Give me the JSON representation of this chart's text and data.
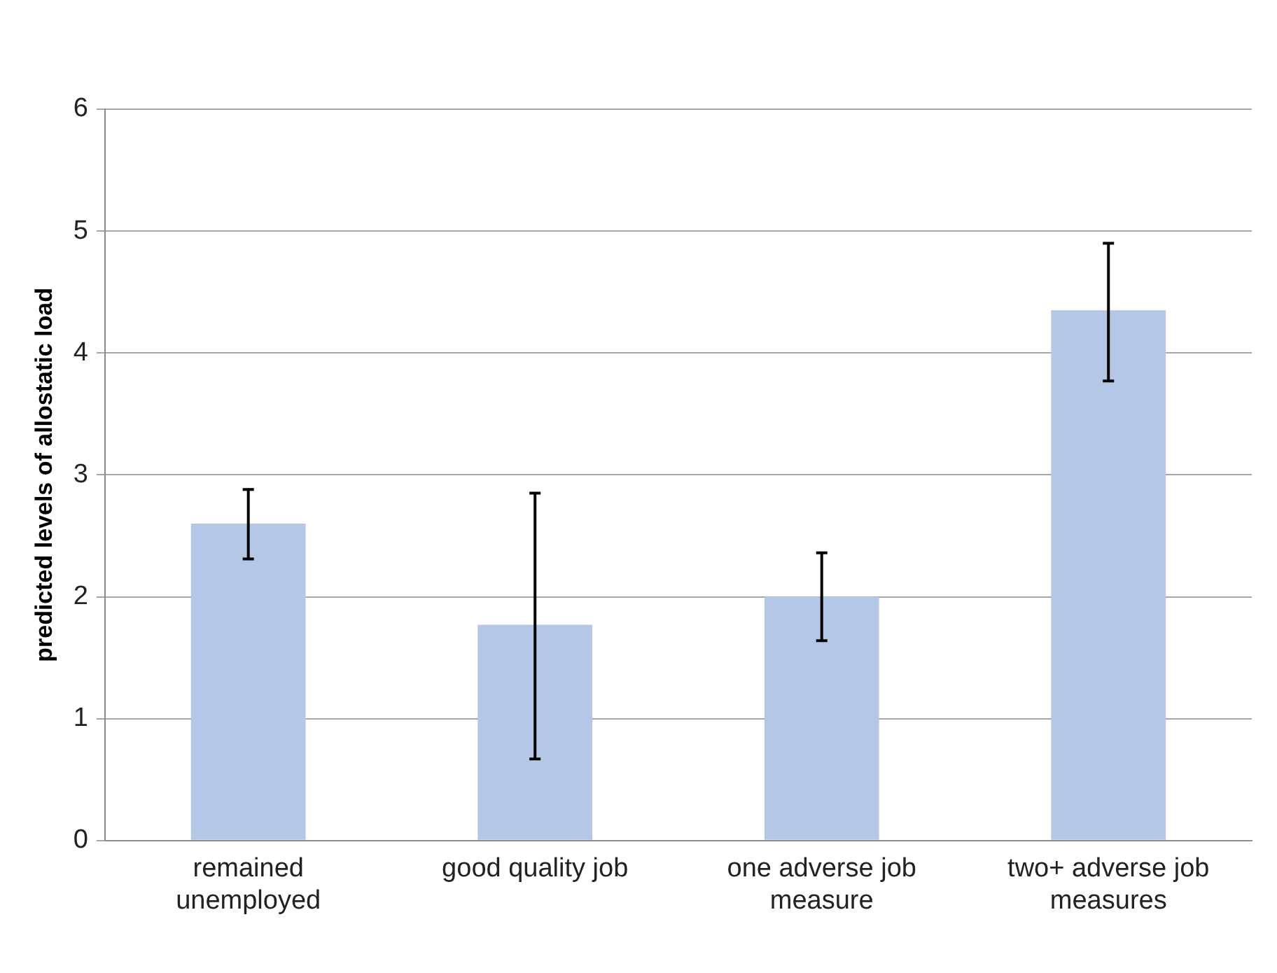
{
  "chart_data": {
    "type": "bar",
    "ylabel": "predicted levels of allostatic load",
    "categories": [
      "remained unemployed",
      "good quality job",
      "one adverse job measure",
      "two+ adverse job measures"
    ],
    "values": [
      2.6,
      1.77,
      2.0,
      4.35
    ],
    "errors": [
      [
        2.31,
        2.88
      ],
      [
        0.67,
        2.85
      ],
      [
        1.64,
        2.36
      ],
      [
        3.77,
        4.9
      ]
    ],
    "color": "#b4c7e7",
    "ylim": [
      0,
      6
    ],
    "yticks": [
      0,
      1,
      2,
      3,
      4,
      5,
      6
    ],
    "grid": "y",
    "legend": false
  }
}
